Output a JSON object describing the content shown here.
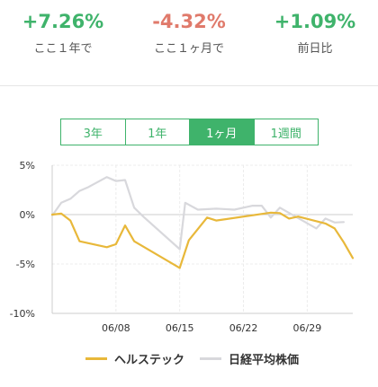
{
  "stats": [
    {
      "value": "+7.26%",
      "label": "ここ１年で",
      "color": "#3fb36b"
    },
    {
      "value": "-4.32%",
      "label": "ここ１ヶ月で",
      "color": "#e07a6b"
    },
    {
      "value": "+1.09%",
      "label": "前日比",
      "color": "#3fb36b"
    }
  ],
  "tabs": [
    {
      "label": "3年",
      "active": false
    },
    {
      "label": "1年",
      "active": false
    },
    {
      "label": "1ヶ月",
      "active": true
    },
    {
      "label": "1週間",
      "active": false
    }
  ],
  "colors": {
    "accent": "#3fb36b",
    "negative": "#e07a6b",
    "series1": "#e8b83a",
    "series2": "#d8d8dc"
  },
  "chart_data": {
    "type": "line",
    "ylim": [
      -10,
      5
    ],
    "yticks": [
      5,
      0,
      -5,
      -10
    ],
    "ytick_labels": [
      "5%",
      "0%",
      "-5%",
      "-10%"
    ],
    "xlim": [
      0,
      33
    ],
    "xticks": [
      7,
      14,
      21,
      28
    ],
    "xtick_labels": [
      "06/08",
      "06/15",
      "06/22",
      "06/29"
    ],
    "grid": true,
    "legend_position": "bottom",
    "series": [
      {
        "name": "ヘルステック",
        "color": "#e8b83a",
        "points": [
          [
            0,
            0
          ],
          [
            1,
            0.1
          ],
          [
            2,
            -0.6
          ],
          [
            3,
            -2.7
          ],
          [
            6,
            -3.3
          ],
          [
            7,
            -3.0
          ],
          [
            8,
            -1.1
          ],
          [
            9,
            -2.7
          ],
          [
            14,
            -5.4
          ],
          [
            15,
            -2.6
          ],
          [
            17,
            -0.3
          ],
          [
            18,
            -0.6
          ],
          [
            24,
            0.2
          ],
          [
            25,
            0.15
          ],
          [
            26,
            -0.4
          ],
          [
            27,
            -0.2
          ],
          [
            30,
            -0.9
          ],
          [
            31,
            -1.4
          ],
          [
            32,
            -2.8
          ],
          [
            33,
            -4.4
          ]
        ]
      },
      {
        "name": "日経平均株価",
        "color": "#d8d8dc",
        "points": [
          [
            0,
            -0.1
          ],
          [
            1,
            1.2
          ],
          [
            2,
            1.6
          ],
          [
            3,
            2.4
          ],
          [
            4,
            2.8
          ],
          [
            5,
            3.3
          ],
          [
            6,
            3.8
          ],
          [
            7,
            3.4
          ],
          [
            8,
            3.5
          ],
          [
            9,
            0.7
          ],
          [
            10,
            -0.2
          ],
          [
            14,
            -3.5
          ],
          [
            14.6,
            1.2
          ],
          [
            16,
            0.5
          ],
          [
            18,
            0.6
          ],
          [
            20,
            0.5
          ],
          [
            22,
            0.9
          ],
          [
            23,
            0.9
          ],
          [
            24,
            -0.3
          ],
          [
            25,
            0.7
          ],
          [
            29,
            -1.4
          ],
          [
            30,
            -0.4
          ],
          [
            31,
            -0.8
          ],
          [
            32,
            -0.75
          ]
        ]
      }
    ]
  }
}
